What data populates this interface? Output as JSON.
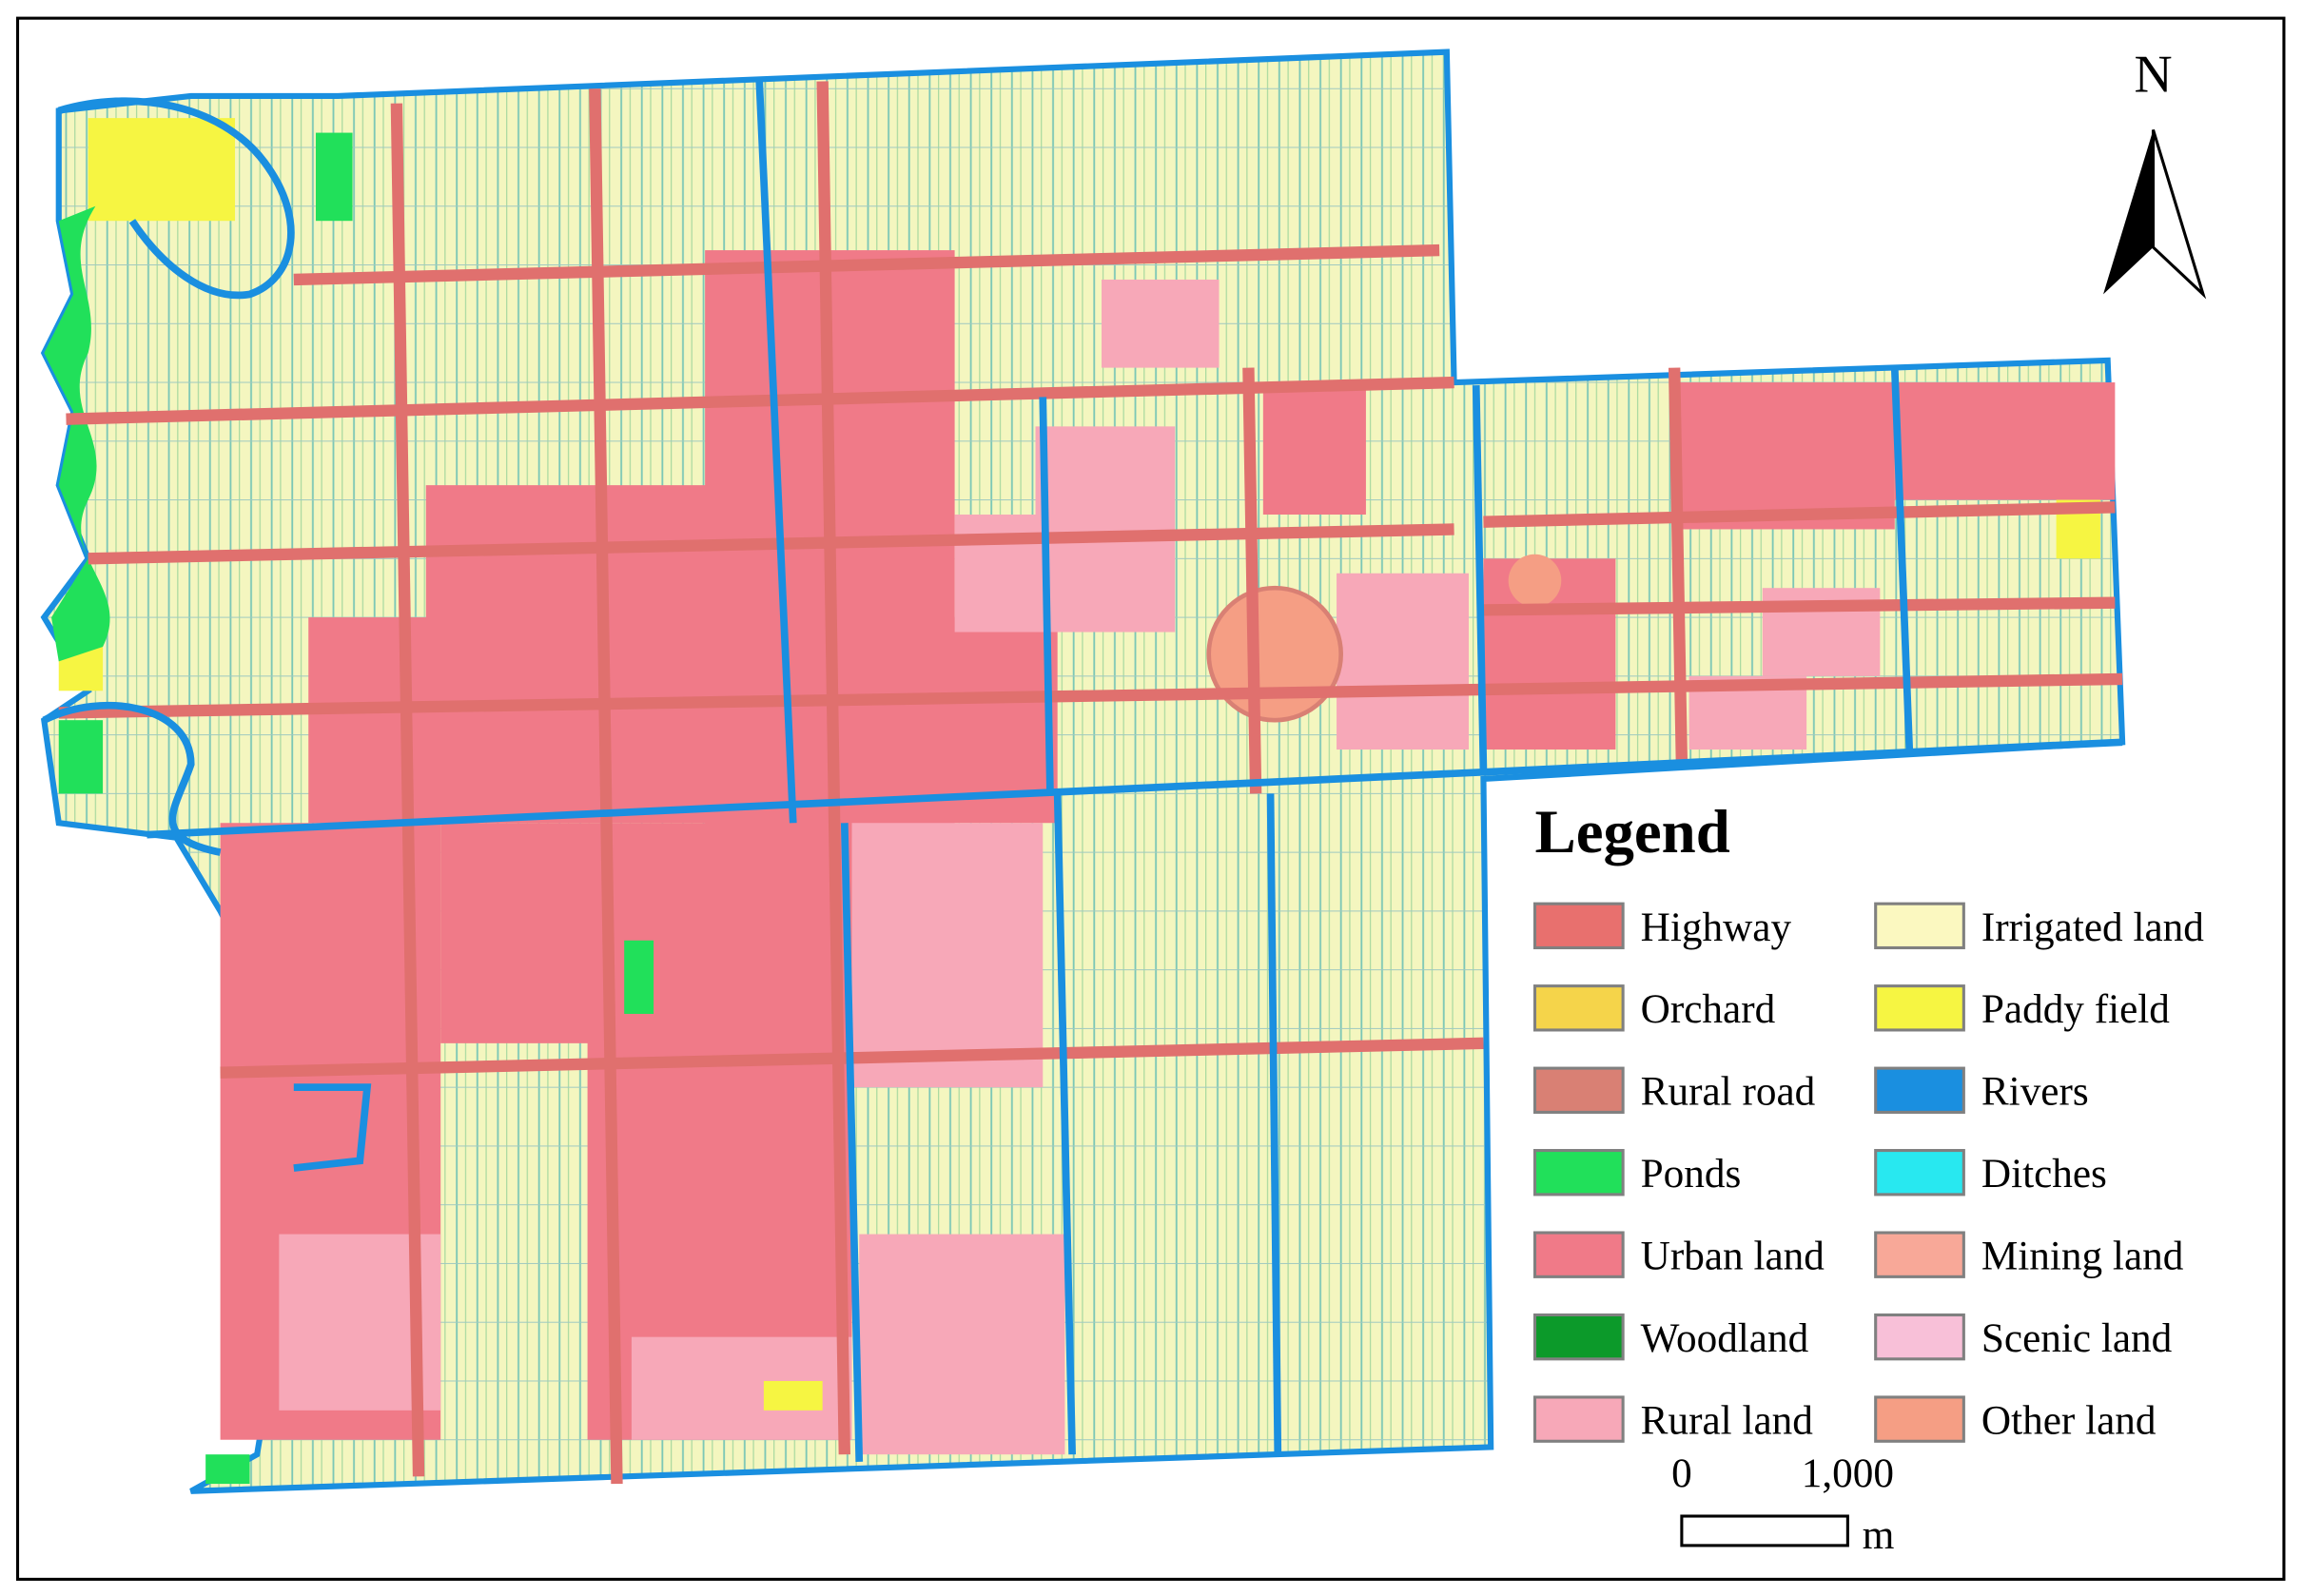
{
  "legend": {
    "title": "Legend",
    "items": [
      {
        "label": "Highway",
        "color": "#e8706e"
      },
      {
        "label": "Orchard",
        "color": "#f5d44a"
      },
      {
        "label": "Rural road",
        "color": "#d98074"
      },
      {
        "label": "Ponds",
        "color": "#21e05a"
      },
      {
        "label": "Urban land",
        "color": "#f07a88"
      },
      {
        "label": "Woodland",
        "color": "#0c9a2a"
      },
      {
        "label": "Rural land",
        "color": "#f7a8b8"
      },
      {
        "label": "Irrigated land",
        "color": "#fbf8c0"
      },
      {
        "label": "Paddy field",
        "color": "#f6f542"
      },
      {
        "label": "Rivers",
        "color": "#1a8fe0"
      },
      {
        "label": "Ditches",
        "color": "#28e8f0"
      },
      {
        "label": "Mining land",
        "color": "#f8a898"
      },
      {
        "label": "Scenic land",
        "color": "#f8c0d8"
      },
      {
        "label": "Other land",
        "color": "#f59e84"
      }
    ]
  },
  "north_arrow": {
    "label": "N"
  },
  "scale_bar": {
    "start": "0",
    "end": "1,000",
    "unit": "m"
  }
}
